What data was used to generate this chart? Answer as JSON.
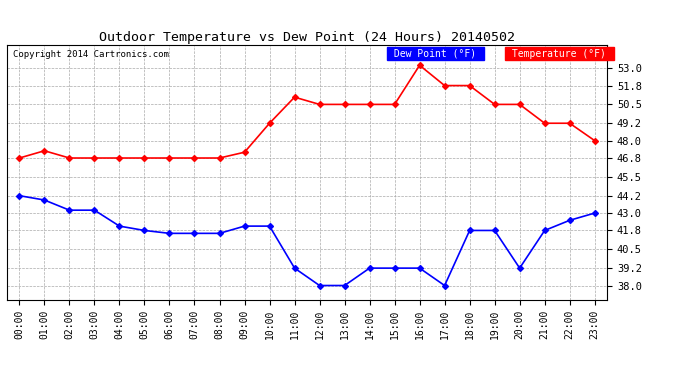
{
  "title": "Outdoor Temperature vs Dew Point (24 Hours) 20140502",
  "copyright": "Copyright 2014 Cartronics.com",
  "x_labels": [
    "00:00",
    "01:00",
    "02:00",
    "03:00",
    "04:00",
    "05:00",
    "06:00",
    "07:00",
    "08:00",
    "09:00",
    "10:00",
    "11:00",
    "12:00",
    "13:00",
    "14:00",
    "15:00",
    "16:00",
    "17:00",
    "18:00",
    "19:00",
    "20:00",
    "21:00",
    "22:00",
    "23:00"
  ],
  "temperature_values": [
    46.8,
    47.3,
    46.8,
    46.8,
    46.8,
    46.8,
    46.8,
    46.8,
    46.8,
    47.2,
    49.2,
    51.0,
    50.5,
    50.5,
    50.5,
    50.5,
    53.2,
    51.8,
    51.8,
    50.5,
    50.5,
    49.2,
    49.2,
    48.0
  ],
  "dewpoint_values": [
    44.2,
    43.9,
    43.2,
    43.2,
    42.1,
    41.8,
    41.6,
    41.6,
    41.6,
    42.1,
    42.1,
    39.2,
    38.0,
    38.0,
    39.2,
    39.2,
    39.2,
    38.0,
    41.8,
    41.8,
    39.2,
    41.8,
    42.5,
    43.0
  ],
  "temp_color": "#ff0000",
  "dew_color": "#0000ff",
  "bg_color": "#ffffff",
  "plot_bg_color": "#ffffff",
  "grid_color": "#aaaaaa",
  "ylim_min": 37.0,
  "ylim_max": 54.6,
  "yticks": [
    38.0,
    39.2,
    40.5,
    41.8,
    43.0,
    44.2,
    45.5,
    46.8,
    48.0,
    49.2,
    50.5,
    51.8,
    53.0
  ],
  "legend_dew_bg": "#0000ff",
  "legend_temp_bg": "#ff0000",
  "legend_dew_text": "Dew Point (°F)",
  "legend_temp_text": "Temperature (°F)",
  "marker": "D",
  "marker_size": 3,
  "linewidth": 1.2
}
